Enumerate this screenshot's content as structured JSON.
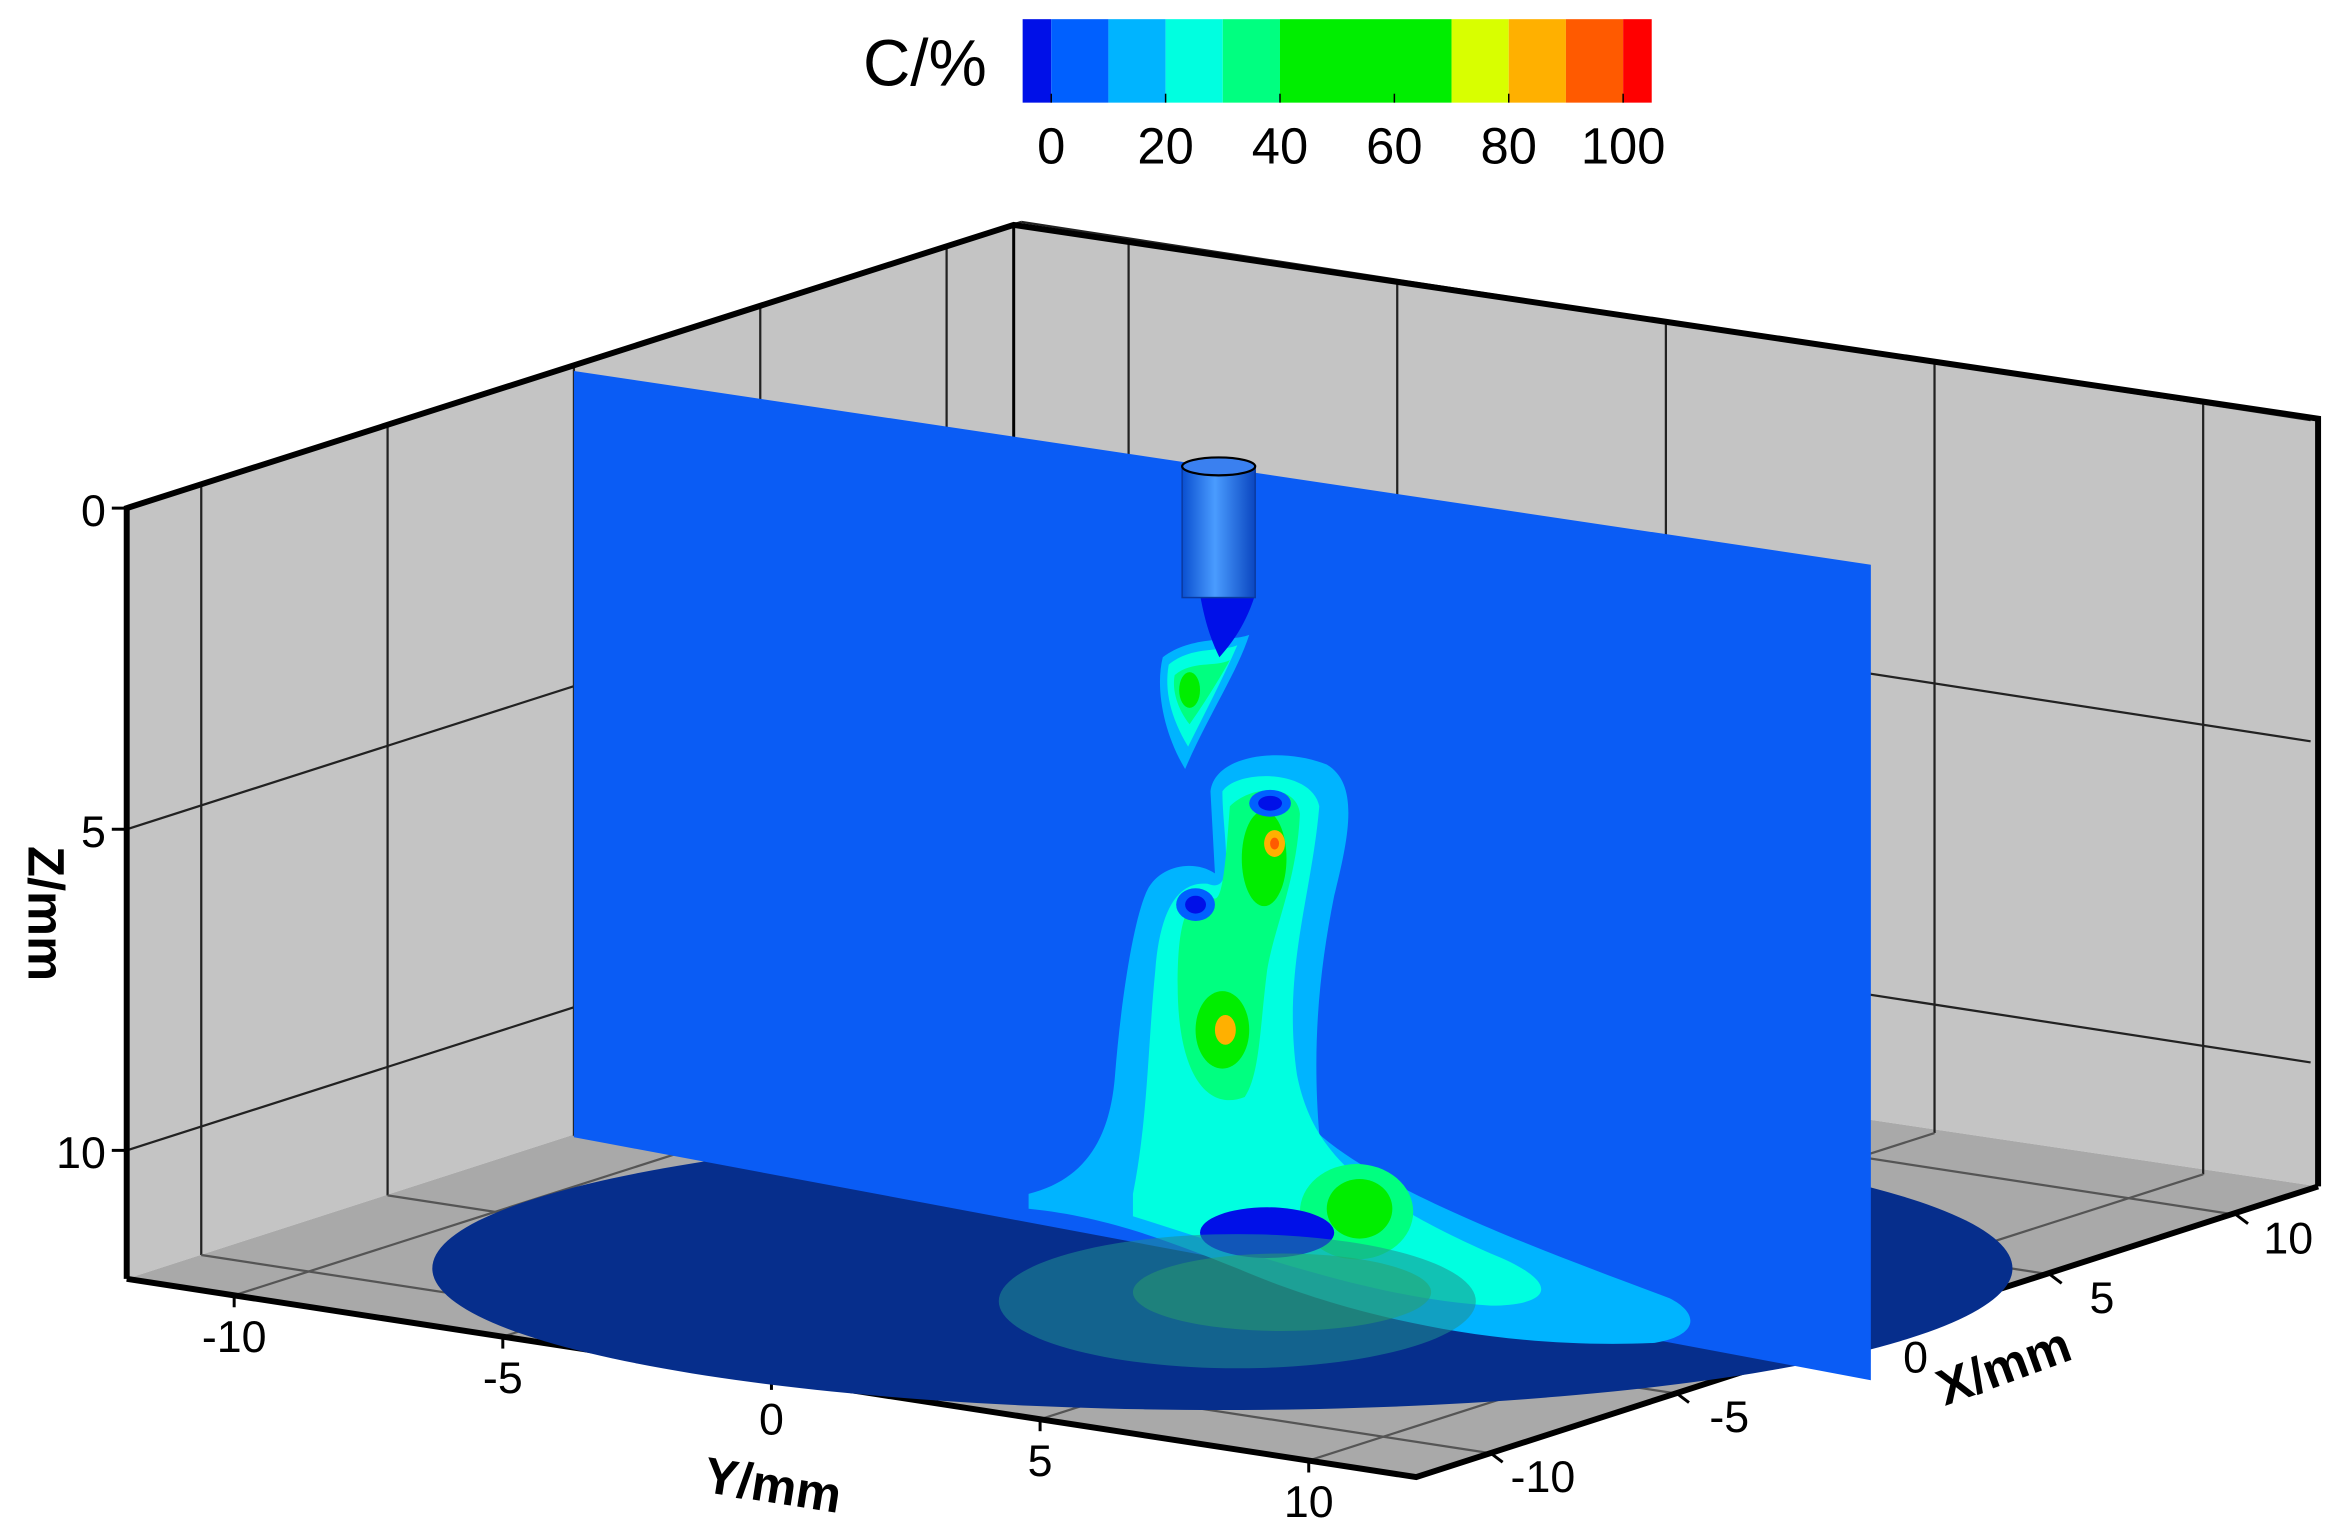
{
  "chart_data": {
    "type": "contour3d",
    "colorbar": {
      "title": "C/%",
      "levels": [
        -5,
        0,
        10,
        20,
        30,
        40,
        70,
        80,
        90,
        100,
        105
      ],
      "colors": [
        "#0010e8",
        "#0060ff",
        "#00b4ff",
        "#00ffe0",
        "#00ff80",
        "#00ee00",
        "#d8ff00",
        "#ffb000",
        "#ff5a00",
        "#ff0000"
      ],
      "ticks": [
        0,
        20,
        40,
        60,
        80,
        100
      ]
    },
    "xlabel": "X/mm",
    "ylabel": "Y/mm",
    "zlabel": "Z/mm",
    "xlim": [
      -12,
      12
    ],
    "ylim": [
      -12,
      12
    ],
    "zlim": [
      0,
      12
    ],
    "xticks": [
      -10,
      -5,
      0,
      5,
      10
    ],
    "yticks": [
      -10,
      -5,
      0,
      5,
      10
    ],
    "zticks": [
      0,
      5,
      10
    ],
    "grid": true
  }
}
